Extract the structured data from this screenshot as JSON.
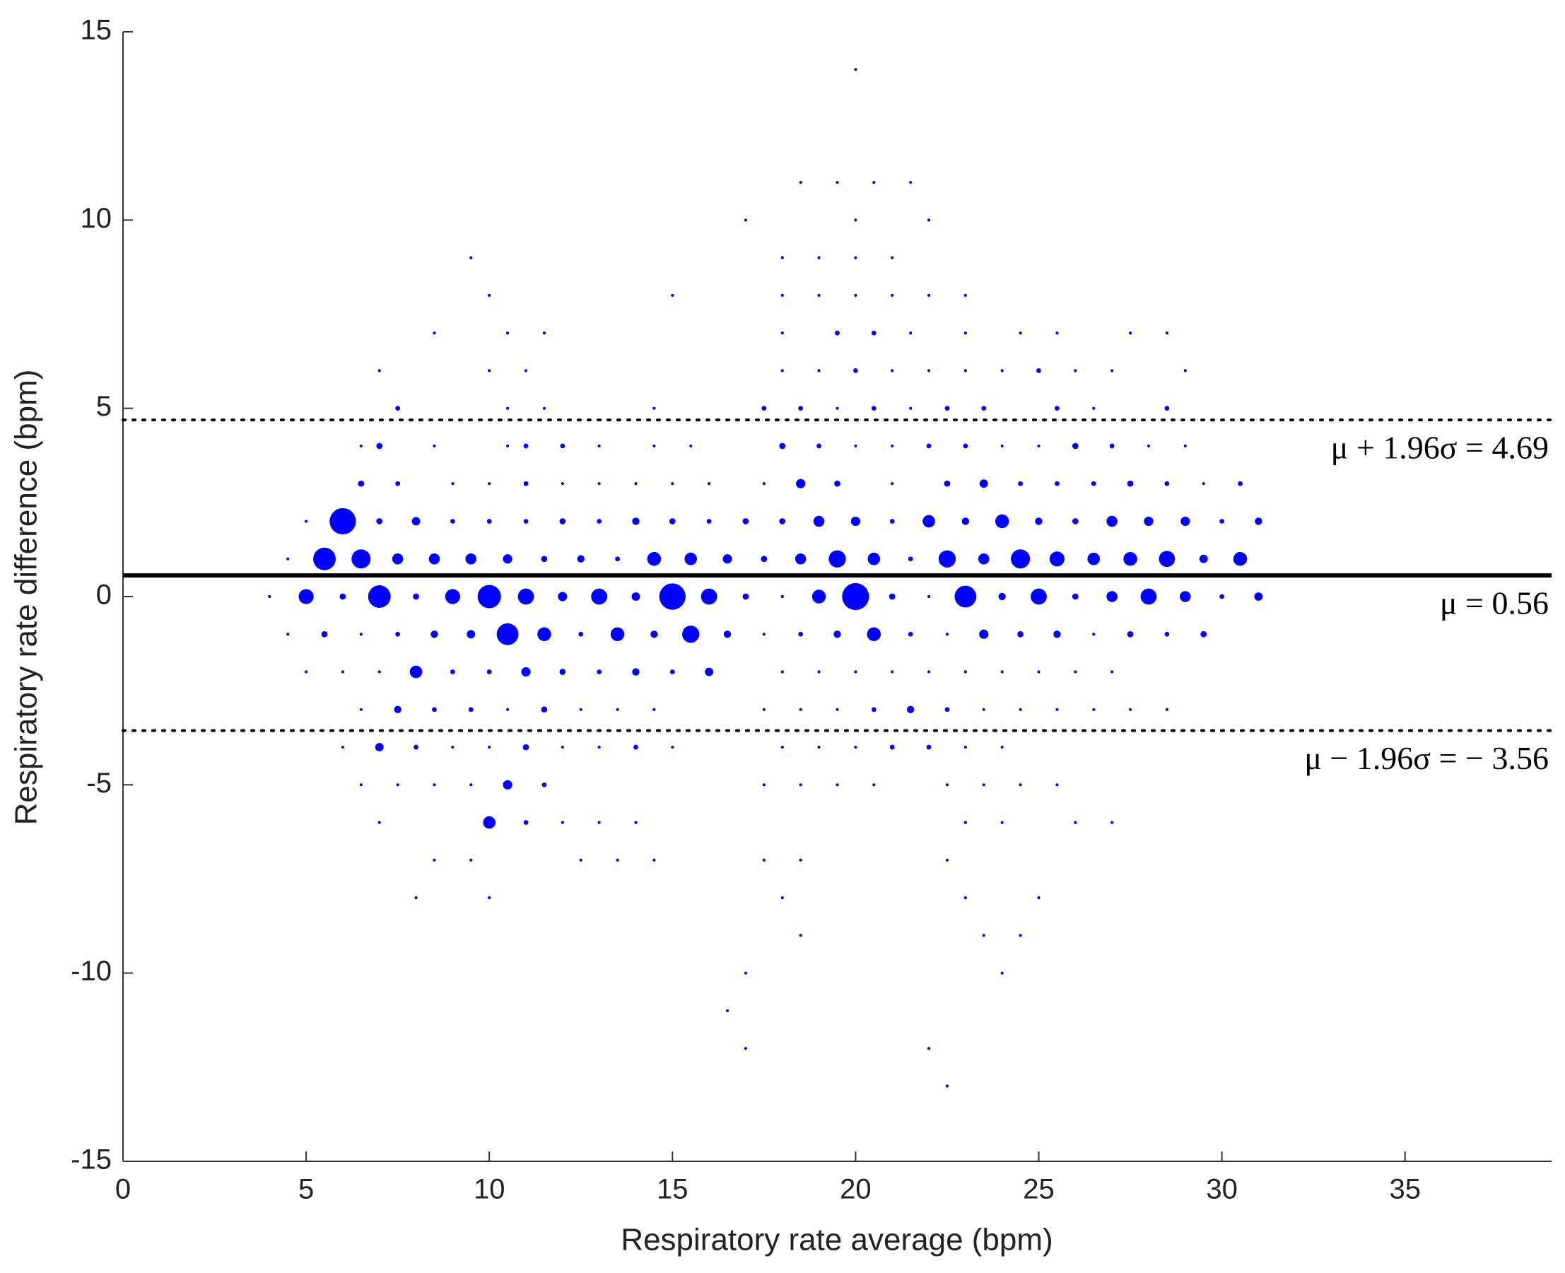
{
  "chart_data": {
    "type": "bubble",
    "x_label": "Respiratory rate average (bpm)",
    "y_label": "Respiratory rate difference (bpm)",
    "xlim": [
      0,
      39
    ],
    "ylim": [
      -15,
      15
    ],
    "xticks": [
      0,
      5,
      10,
      15,
      20,
      25,
      30,
      35
    ],
    "yticks": [
      -15,
      -10,
      -5,
      0,
      5,
      10,
      15
    ],
    "grid": false,
    "reference_lines": [
      {
        "label": "μ + 1.96σ = 4.69",
        "value": 4.69,
        "style": "dotted"
      },
      {
        "label": "μ = 0.56",
        "value": 0.56,
        "style": "solid"
      },
      {
        "label": "μ − 1.96σ = − 3.56",
        "value": -3.56,
        "style": "dotted"
      }
    ],
    "series": [
      {
        "color": "#0000ff",
        "x": [
          20,
          18.5,
          19.5,
          20.5,
          21.5,
          17,
          20,
          22,
          9.5,
          18,
          19,
          20,
          21,
          10,
          15,
          18,
          19,
          20,
          21,
          22,
          23,
          8.5,
          10.5,
          11.5,
          18,
          19.5,
          20.5,
          21.5,
          23,
          24.5,
          25.5,
          27.5,
          28.5,
          7,
          10,
          11,
          18,
          19,
          20,
          21,
          22,
          23,
          24,
          25,
          26,
          27,
          29,
          7.5,
          10.5,
          11.5,
          14.5,
          17.5,
          18.5,
          19.5,
          20.5,
          21.5,
          22.5,
          23.5,
          25.5,
          26.5,
          28.5,
          6.5,
          7,
          8.5,
          10.5,
          11,
          12,
          13,
          14.5,
          15.5,
          18,
          19,
          20,
          21,
          22,
          23,
          24,
          25,
          26,
          27,
          28,
          29,
          6.5,
          7.5,
          9,
          10,
          11,
          12,
          13,
          14,
          15,
          16,
          17.5,
          18.5,
          19.5,
          21,
          22.5,
          23.5,
          24.5,
          25.5,
          26.5,
          27.5,
          28.5,
          29.5,
          30.5,
          5,
          6,
          7,
          8,
          9,
          10,
          11,
          12,
          13,
          14,
          15,
          16,
          17,
          18,
          19,
          20,
          21,
          22,
          23,
          24,
          25,
          26,
          27,
          28,
          29,
          30,
          31,
          4.5,
          5.5,
          6.5,
          7.5,
          8.5,
          9.5,
          10.5,
          11.5,
          12.5,
          13.5,
          14.5,
          15.5,
          16.5,
          17.5,
          18.5,
          19.5,
          20.5,
          21.5,
          22.5,
          23.5,
          24.5,
          25.5,
          26.5,
          27.5,
          28.5,
          29.5,
          30.5,
          4,
          5,
          6,
          7,
          8,
          9,
          10,
          11,
          12,
          13,
          14,
          15,
          16,
          17,
          18,
          19,
          20,
          21,
          22,
          23,
          24,
          25,
          26,
          27,
          28,
          29,
          30,
          31,
          4.5,
          5.5,
          6.5,
          7.5,
          8.5,
          9.5,
          10.5,
          11.5,
          12.5,
          13.5,
          14.5,
          15.5,
          16.5,
          17.5,
          18.5,
          19.5,
          20.5,
          21.5,
          22.5,
          23.5,
          24.5,
          25.5,
          26.5,
          27.5,
          28.5,
          29.5,
          5,
          6,
          7,
          8,
          9,
          10,
          11,
          12,
          13,
          14,
          15,
          16,
          18,
          19,
          20,
          21,
          22,
          23,
          24,
          25,
          26,
          27,
          6.5,
          7.5,
          8.5,
          9.5,
          10.5,
          11.5,
          12.5,
          13.5,
          14.5,
          17.5,
          18.5,
          19.5,
          20.5,
          21.5,
          22.5,
          23.5,
          24.5,
          25.5,
          26.5,
          27.5,
          28.5,
          6,
          7,
          8,
          9,
          10,
          11,
          12,
          13,
          14,
          15,
          18,
          19,
          20,
          21,
          22,
          23,
          24,
          6.5,
          7.5,
          8.5,
          9.5,
          10.5,
          11.5,
          17.5,
          18.5,
          19.5,
          20.5,
          22.5,
          23.5,
          24.5,
          25.5,
          7,
          10,
          11,
          12,
          13,
          14,
          23,
          24,
          26,
          27,
          8.5,
          9.5,
          12.5,
          13.5,
          14.5,
          17.5,
          18.5,
          22.5,
          8,
          10,
          18,
          23,
          25,
          18.5,
          23.5,
          24.5,
          17,
          24,
          16.5,
          17,
          22,
          22.5
        ],
        "values": [
          14,
          11,
          11,
          11,
          11,
          10,
          10,
          10,
          9,
          9,
          9,
          9,
          9,
          8,
          8,
          8,
          8,
          8,
          8,
          8,
          8,
          7,
          7,
          7,
          7,
          7,
          7,
          7,
          7,
          7,
          7,
          7,
          7,
          6,
          6,
          6,
          6,
          6,
          6,
          6,
          6,
          6,
          6,
          6,
          6,
          6,
          6,
          5,
          5,
          5,
          5,
          5,
          5,
          5,
          5,
          5,
          5,
          5,
          5,
          5,
          5,
          4,
          4,
          4,
          4,
          4,
          4,
          4,
          4,
          4,
          4,
          4,
          4,
          4,
          4,
          4,
          4,
          4,
          4,
          4,
          4,
          4,
          3,
          3,
          3,
          3,
          3,
          3,
          3,
          3,
          3,
          3,
          3,
          3,
          3,
          3,
          3,
          3,
          3,
          3,
          3,
          3,
          3,
          3,
          3,
          2,
          2,
          2,
          2,
          2,
          2,
          2,
          2,
          2,
          2,
          2,
          2,
          2,
          2,
          2,
          2,
          2,
          2,
          2,
          2,
          2,
          2,
          2,
          2,
          2,
          2,
          2,
          1,
          1,
          1,
          1,
          1,
          1,
          1,
          1,
          1,
          1,
          1,
          1,
          1,
          1,
          1,
          1,
          1,
          1,
          1,
          1,
          1,
          1,
          1,
          1,
          1,
          1,
          1,
          0,
          0,
          0,
          0,
          0,
          0,
          0,
          0,
          0,
          0,
          0,
          0,
          0,
          0,
          0,
          0,
          0,
          0,
          0,
          0,
          0,
          0,
          0,
          0,
          0,
          0,
          0,
          0,
          -1,
          -1,
          -1,
          -1,
          -1,
          -1,
          -1,
          -1,
          -1,
          -1,
          -1,
          -1,
          -1,
          -1,
          -1,
          -1,
          -1,
          -1,
          -1,
          -1,
          -1,
          -1,
          -1,
          -1,
          -1,
          -1,
          -2,
          -2,
          -2,
          -2,
          -2,
          -2,
          -2,
          -2,
          -2,
          -2,
          -2,
          -2,
          -2,
          -2,
          -2,
          -2,
          -2,
          -2,
          -2,
          -2,
          -2,
          -2,
          -3,
          -3,
          -3,
          -3,
          -3,
          -3,
          -3,
          -3,
          -3,
          -3,
          -3,
          -3,
          -3,
          -3,
          -3,
          -3,
          -3,
          -3,
          -3,
          -3,
          -3,
          -4,
          -4,
          -4,
          -4,
          -4,
          -4,
          -4,
          -4,
          -4,
          -4,
          -4,
          -4,
          -4,
          -4,
          -4,
          -4,
          -4,
          -5,
          -5,
          -5,
          -5,
          -5,
          -5,
          -5,
          -5,
          -5,
          -5,
          -5,
          -5,
          -5,
          -5,
          -6,
          -6,
          -6,
          -6,
          -6,
          -6,
          -6,
          -6,
          -6,
          -6,
          -7,
          -7,
          -7,
          -7,
          -7,
          -7,
          -7,
          -7,
          -8,
          -8,
          -8,
          -8,
          -8,
          -9,
          -9,
          -9,
          -10,
          -10,
          -11,
          -12,
          -12,
          -13
        ],
        "sizes": [
          1,
          1,
          1,
          1,
          1,
          1,
          1,
          1,
          1,
          1,
          1,
          1,
          1,
          1,
          1,
          1,
          1,
          1,
          1,
          1,
          1,
          1,
          1,
          1,
          1,
          2,
          2,
          1,
          1,
          1,
          1,
          1,
          1,
          1,
          1,
          1,
          1,
          1,
          2,
          1,
          1,
          1,
          1,
          2,
          1,
          1,
          1,
          2,
          1,
          1,
          1,
          2,
          2,
          1,
          2,
          1,
          2,
          2,
          2,
          1,
          2,
          1,
          3,
          1,
          1,
          2,
          2,
          1,
          1,
          1,
          3,
          2,
          1,
          1,
          2,
          2,
          1,
          1,
          3,
          2,
          1,
          1,
          3,
          2,
          1,
          1,
          2,
          1,
          1,
          1,
          1,
          1,
          1,
          6,
          3,
          1,
          3,
          5,
          2,
          2,
          2,
          3,
          2,
          1,
          2,
          1,
          40,
          3,
          5,
          2,
          2,
          2,
          3,
          2,
          4,
          3,
          2,
          3,
          3,
          8,
          6,
          2,
          10,
          4,
          12,
          4,
          3,
          8,
          6,
          6,
          2,
          4,
          1,
          30,
          22,
          8,
          8,
          8,
          6,
          3,
          4,
          2,
          12,
          10,
          6,
          3,
          8,
          18,
          10,
          2,
          18,
          8,
          22,
          14,
          10,
          12,
          16,
          5,
          12,
          1,
          14,
          3,
          30,
          3,
          14,
          32,
          16,
          6,
          16,
          5,
          40,
          16,
          3,
          1,
          12,
          42,
          3,
          1,
          28,
          4,
          16,
          3,
          8,
          16,
          8,
          2,
          5,
          1,
          3,
          1,
          2,
          4,
          5,
          28,
          12,
          2,
          12,
          4,
          18,
          4,
          1,
          2,
          4,
          12,
          2,
          1,
          6,
          3,
          4,
          1,
          3,
          2,
          3,
          1,
          1,
          1,
          10,
          2,
          2,
          6,
          3,
          2,
          4,
          2,
          5,
          1,
          1,
          1,
          1,
          1,
          1,
          1,
          1,
          1,
          1,
          1,
          4,
          2,
          2,
          1,
          3,
          1,
          1,
          1,
          1,
          1,
          1,
          2,
          4,
          2,
          1,
          1,
          1,
          1,
          1,
          1,
          1,
          5,
          2,
          1,
          1,
          3,
          1,
          1,
          2,
          1,
          1,
          1,
          1,
          2,
          2,
          1,
          1,
          1,
          1,
          1,
          1,
          6,
          2,
          1,
          1,
          1,
          1,
          1,
          1,
          1,
          1,
          1,
          10,
          2,
          1,
          1,
          1,
          1,
          1,
          1,
          1,
          1,
          1,
          1,
          1,
          1,
          1,
          1,
          1,
          1,
          1,
          1,
          1,
          1,
          1,
          1,
          1,
          1,
          1,
          1,
          1,
          1,
          1
        ]
      }
    ]
  }
}
